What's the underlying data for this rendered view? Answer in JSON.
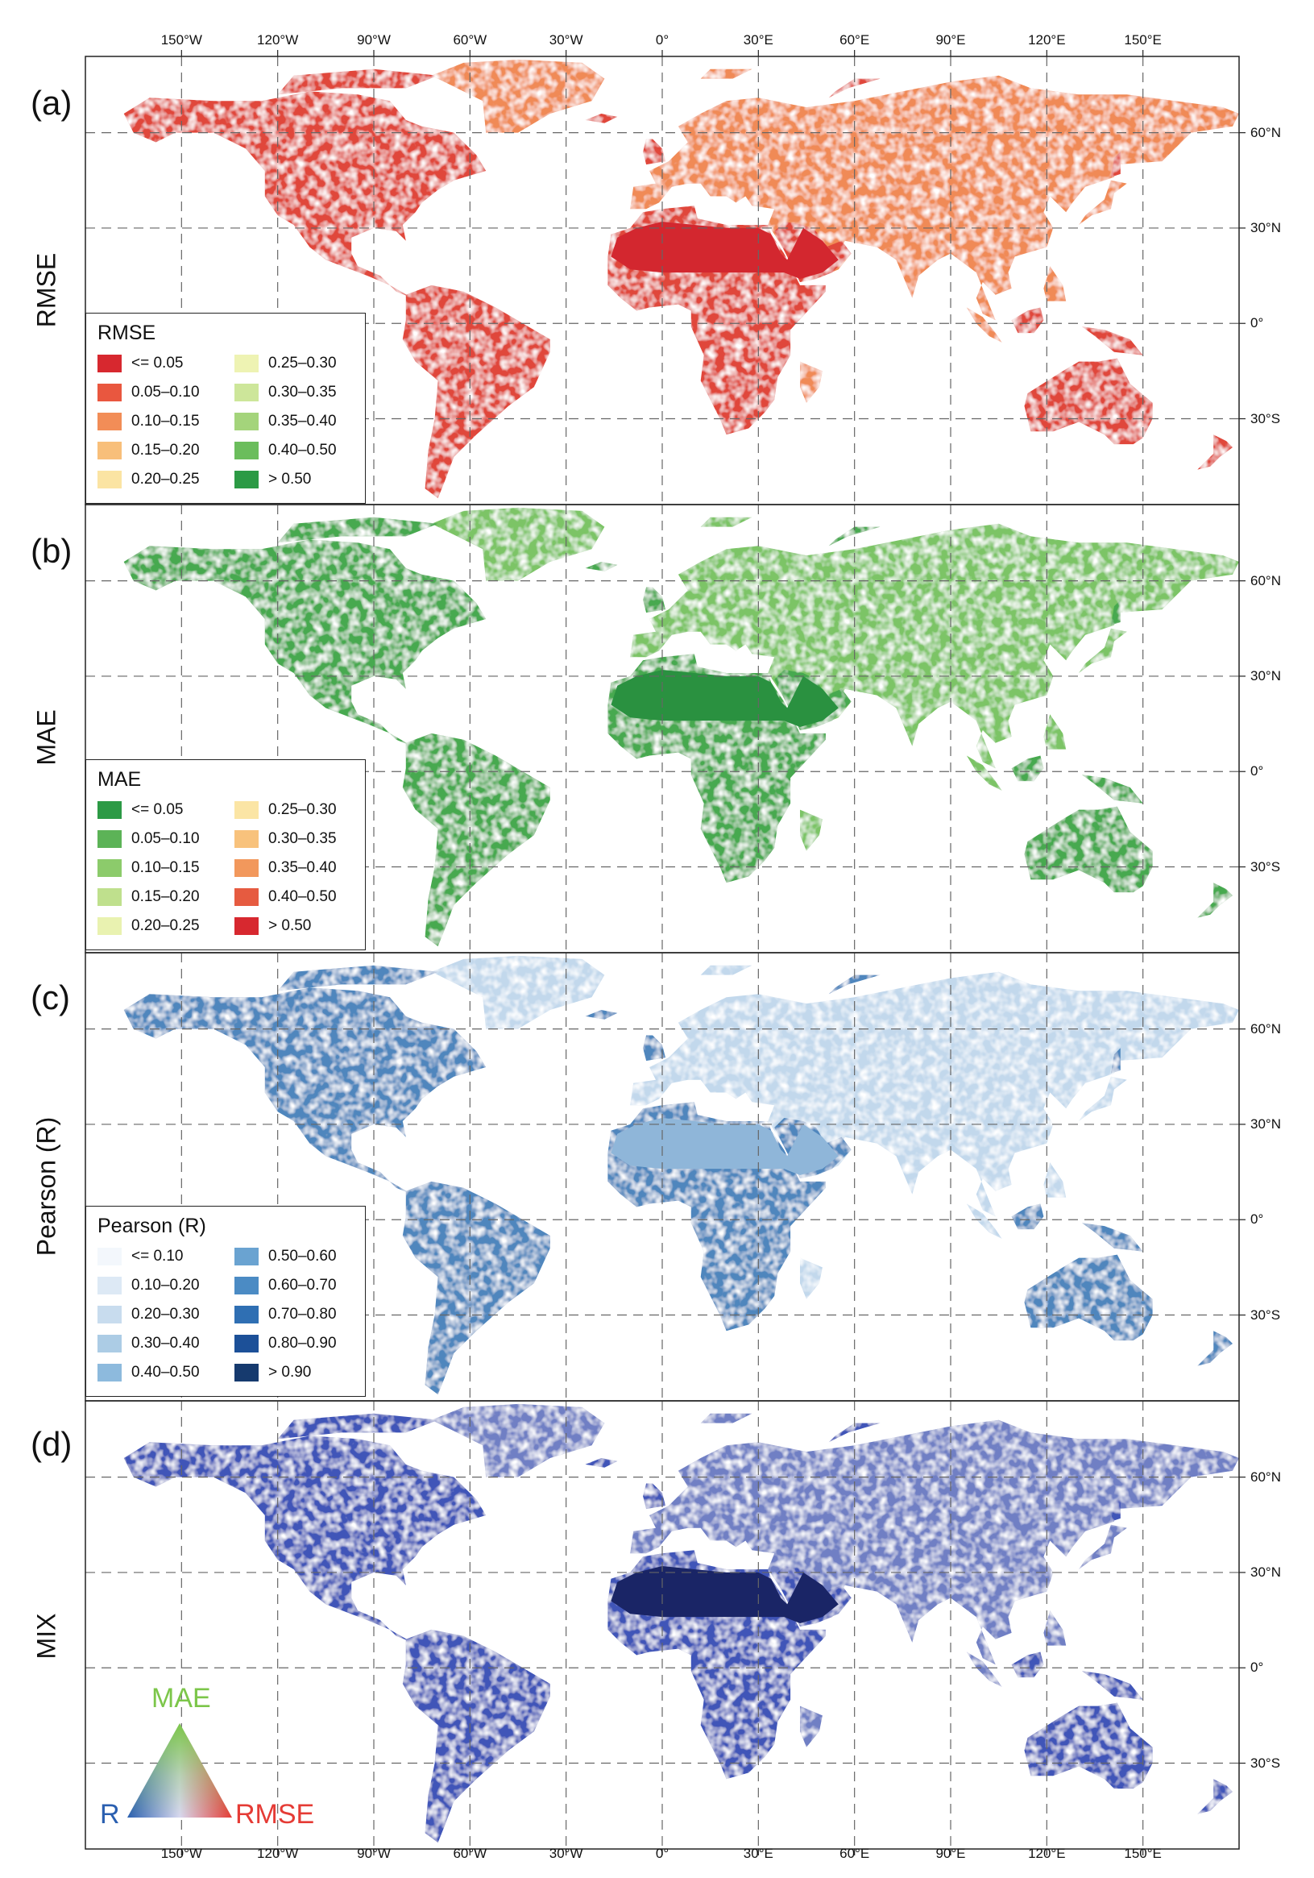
{
  "figure": {
    "lon_labels": [
      "150°W",
      "120°W",
      "90°W",
      "60°W",
      "30°W",
      "0°",
      "30°E",
      "60°E",
      "90°E",
      "120°E",
      "150°E"
    ],
    "lon_values": [
      -150,
      -120,
      -90,
      -60,
      -30,
      0,
      30,
      60,
      90,
      120,
      150
    ],
    "lat_labels": [
      "60°N",
      "30°N",
      "0°",
      "30°S"
    ],
    "lat_values": [
      60,
      30,
      0,
      -30
    ],
    "lon_range": [
      -180,
      180
    ],
    "lat_range": [
      -57,
      84
    ],
    "grid": "dashed"
  },
  "panels": [
    {
      "id": "a",
      "letter": "(a)",
      "side_label": "RMSE",
      "land_color": "#e0463b",
      "land_color_2": "#f08a57",
      "sahara_color": "#d3272f",
      "legend": {
        "title": "RMSE",
        "items": [
          {
            "label": "<= 0.05",
            "color": "#d7282f"
          },
          {
            "label": "0.05–0.10",
            "color": "#e9573f"
          },
          {
            "label": "0.10–0.15",
            "color": "#f28d57"
          },
          {
            "label": "0.15–0.20",
            "color": "#f8bf7a"
          },
          {
            "label": "0.20–0.25",
            "color": "#fbe4a3"
          },
          {
            "label": "0.25–0.30",
            "color": "#eef3b3"
          },
          {
            "label": "0.30–0.35",
            "color": "#cde69a"
          },
          {
            "label": "0.35–0.40",
            "color": "#a4d47b"
          },
          {
            "label": "0.40–0.50",
            "color": "#6bbd5c"
          },
          {
            "label": "> 0.50",
            "color": "#2c9a45"
          }
        ]
      }
    },
    {
      "id": "b",
      "letter": "(b)",
      "side_label": "MAE",
      "land_color": "#47a94f",
      "land_color_2": "#7cc466",
      "sahara_color": "#2a9140",
      "legend": {
        "title": "MAE",
        "items": [
          {
            "label": "<= 0.05",
            "color": "#2c9a45"
          },
          {
            "label": "0.05–0.10",
            "color": "#5cb357"
          },
          {
            "label": "0.10–0.15",
            "color": "#8ccb6b"
          },
          {
            "label": "0.15–0.20",
            "color": "#bfe08d"
          },
          {
            "label": "0.20–0.25",
            "color": "#e9f2b0"
          },
          {
            "label": "0.25–0.30",
            "color": "#fbe5a5"
          },
          {
            "label": "0.30–0.35",
            "color": "#f8c27c"
          },
          {
            "label": "0.35–0.40",
            "color": "#f2985c"
          },
          {
            "label": "0.40–0.50",
            "color": "#e65b40"
          },
          {
            "label": "> 0.50",
            "color": "#d7282f"
          }
        ]
      }
    },
    {
      "id": "c",
      "letter": "(c)",
      "side_label": "Pearson (R)",
      "land_color": "#4f86bd",
      "land_color_2": "#c2d8ec",
      "sahara_color": "#8fb6d9",
      "legend": {
        "title": "Pearson (R)",
        "items": [
          {
            "label": "<= 0.10",
            "color": "#f3f7fc"
          },
          {
            "label": "0.10–0.20",
            "color": "#dde9f5"
          },
          {
            "label": "0.20–0.30",
            "color": "#c8dcee"
          },
          {
            "label": "0.30–0.40",
            "color": "#acccE5"
          },
          {
            "label": "0.40–0.50",
            "color": "#8dbadd"
          },
          {
            "label": "0.50–0.60",
            "color": "#6aa3d1"
          },
          {
            "label": "0.60–0.70",
            "color": "#4b8bc4"
          },
          {
            "label": "0.70–0.80",
            "color": "#2f6fb3"
          },
          {
            "label": "0.80–0.90",
            "color": "#1c5098"
          },
          {
            "label": "> 0.90",
            "color": "#163a6e"
          }
        ]
      }
    },
    {
      "id": "d",
      "letter": "(d)",
      "side_label": "MIX",
      "land_color": "#3f55b8",
      "land_color_2": "#6f7fc4",
      "sahara_color": "#1a2566",
      "triangle": {
        "top_label": "MAE",
        "left_label": "R",
        "right_label": "RMSE",
        "top_color": "#7cc64a",
        "left_color": "#2a5fb0",
        "right_color": "#e53b35"
      }
    }
  ]
}
